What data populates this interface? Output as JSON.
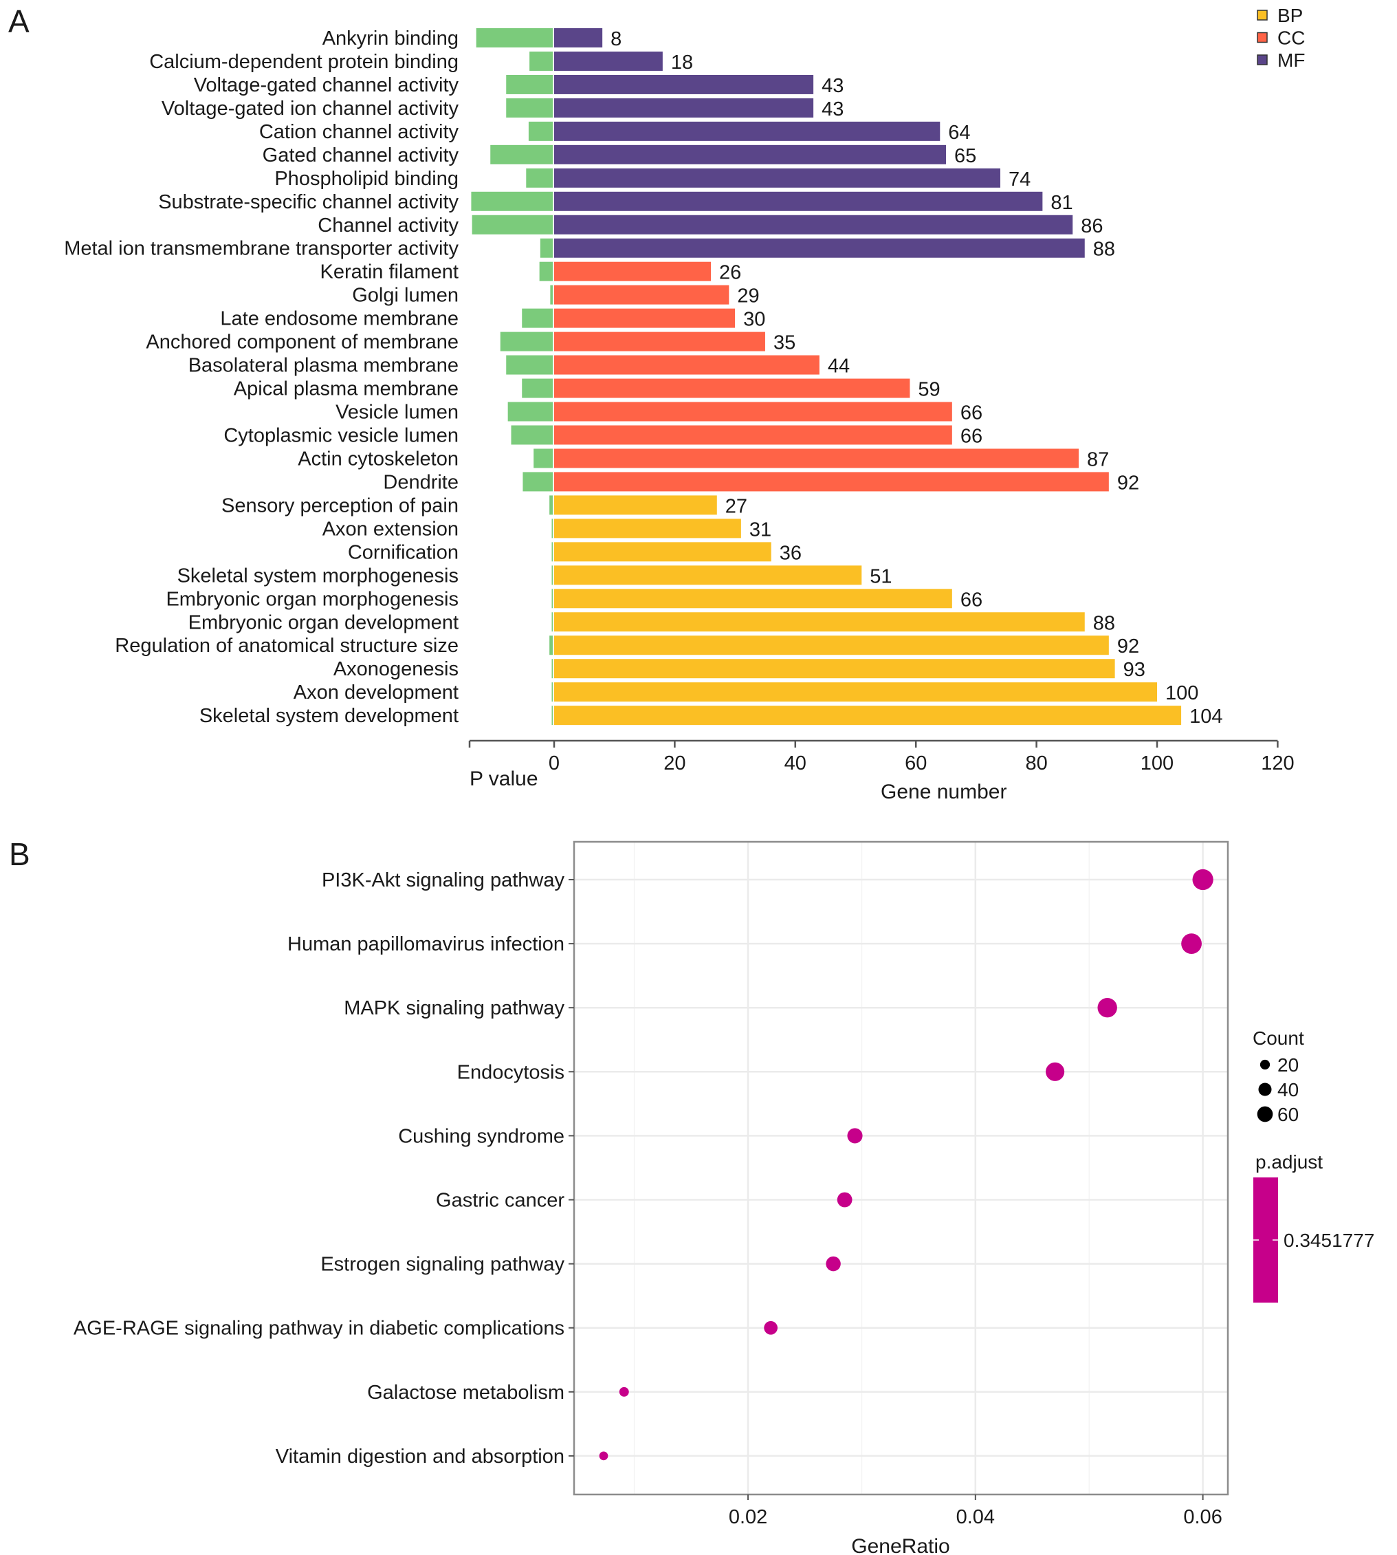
{
  "panel_a_letter": "A",
  "panel_b_letter": "B",
  "chart_data": [
    {
      "type": "bar",
      "panel": "A",
      "orientation": "horizontal",
      "title": "",
      "xlabel": "Gene number",
      "secondary_xlabel": "P value",
      "xlim": [
        0,
        120
      ],
      "xticks": [
        "0",
        "20",
        "40",
        "60",
        "80",
        "100",
        "120"
      ],
      "xtick_values": [
        0,
        20,
        40,
        60,
        80,
        100,
        120
      ],
      "p_value_note": "Green bars extend left of 0 on an unlabeled P value axis; values given as fraction of that axis extent",
      "legend": {
        "position": "top-right",
        "entries": [
          {
            "key": "BP",
            "label": "BP",
            "color": "#FBBF24"
          },
          {
            "key": "CC",
            "label": "CC",
            "color": "#FF6347"
          },
          {
            "key": "MF",
            "label": "MF",
            "color": "#5A4589"
          }
        ]
      },
      "pvalue_color": "#7BCB7B",
      "categories": [
        {
          "label": "Ankyrin binding",
          "group": "MF",
          "gene_number": 8,
          "p_value_bar": 0.92
        },
        {
          "label": "Calcium-dependent protein binding",
          "group": "MF",
          "gene_number": 18,
          "p_value_bar": 0.28
        },
        {
          "label": "Voltage-gated channel activity",
          "group": "MF",
          "gene_number": 43,
          "p_value_bar": 0.56
        },
        {
          "label": "Voltage-gated ion channel activity",
          "group": "MF",
          "gene_number": 43,
          "p_value_bar": 0.56
        },
        {
          "label": "Cation channel activity",
          "group": "MF",
          "gene_number": 64,
          "p_value_bar": 0.29
        },
        {
          "label": "Gated channel activity",
          "group": "MF",
          "gene_number": 65,
          "p_value_bar": 0.75
        },
        {
          "label": "Phospholipid binding",
          "group": "MF",
          "gene_number": 74,
          "p_value_bar": 0.32
        },
        {
          "label": "Substrate-specific channel activity",
          "group": "MF",
          "gene_number": 81,
          "p_value_bar": 0.98
        },
        {
          "label": "Channel activity",
          "group": "MF",
          "gene_number": 86,
          "p_value_bar": 0.97
        },
        {
          "label": "Metal ion transmembrane transporter activity",
          "group": "MF",
          "gene_number": 88,
          "p_value_bar": 0.15
        },
        {
          "label": "Keratin filament",
          "group": "CC",
          "gene_number": 26,
          "p_value_bar": 0.16
        },
        {
          "label": "Golgi lumen",
          "group": "CC",
          "gene_number": 29,
          "p_value_bar": 0.03
        },
        {
          "label": "Late endosome membrane",
          "group": "CC",
          "gene_number": 30,
          "p_value_bar": 0.37
        },
        {
          "label": "Anchored component of membrane",
          "group": "CC",
          "gene_number": 35,
          "p_value_bar": 0.63
        },
        {
          "label": "Basolateral plasma membrane",
          "group": "CC",
          "gene_number": 44,
          "p_value_bar": 0.56
        },
        {
          "label": "Apical plasma membrane",
          "group": "CC",
          "gene_number": 59,
          "p_value_bar": 0.37
        },
        {
          "label": "Vesicle lumen",
          "group": "CC",
          "gene_number": 66,
          "p_value_bar": 0.54
        },
        {
          "label": "Cytoplasmic vesicle lumen",
          "group": "CC",
          "gene_number": 66,
          "p_value_bar": 0.5
        },
        {
          "label": "Actin cytoskeleton",
          "group": "CC",
          "gene_number": 87,
          "p_value_bar": 0.23
        },
        {
          "label": "Dendrite",
          "group": "CC",
          "gene_number": 92,
          "p_value_bar": 0.36
        },
        {
          "label": "Sensory perception of pain",
          "group": "BP",
          "gene_number": 27,
          "p_value_bar": 0.04
        },
        {
          "label": "Axon extension",
          "group": "BP",
          "gene_number": 31,
          "p_value_bar": 0.01
        },
        {
          "label": "Cornification",
          "group": "BP",
          "gene_number": 36,
          "p_value_bar": 0.005
        },
        {
          "label": "Skeletal system morphogenesis",
          "group": "BP",
          "gene_number": 51,
          "p_value_bar": 0.01
        },
        {
          "label": "Embryonic organ morphogenesis",
          "group": "BP",
          "gene_number": 66,
          "p_value_bar": 0.005
        },
        {
          "label": "Embryonic organ development",
          "group": "BP",
          "gene_number": 88,
          "p_value_bar": 0.01
        },
        {
          "label": "Regulation of anatomical structure size",
          "group": "BP",
          "gene_number": 92,
          "p_value_bar": 0.04
        },
        {
          "label": "Axonogenesis",
          "group": "BP",
          "gene_number": 93,
          "p_value_bar": 0.005
        },
        {
          "label": "Axon development",
          "group": "BP",
          "gene_number": 100,
          "p_value_bar": 0.005
        },
        {
          "label": "Skeletal system development",
          "group": "BP",
          "gene_number": 104,
          "p_value_bar": 0.005
        }
      ]
    },
    {
      "type": "scatter",
      "panel": "B",
      "title": "",
      "xlabel": "GeneRatio",
      "ylabel": "",
      "xlim": [
        0.0047,
        0.0622
      ],
      "xticks": [
        "0.02",
        "0.04",
        "0.06"
      ],
      "xtick_values": [
        0.02,
        0.04,
        0.06
      ],
      "minor_grid_values": [
        0.01,
        0.03,
        0.05
      ],
      "grid": true,
      "point_color": "#C6008A",
      "points": [
        {
          "label": "PI3K-Akt signaling pathway",
          "gene_ratio": 0.06,
          "count": 60
        },
        {
          "label": "Human papillomavirus infection",
          "gene_ratio": 0.059,
          "count": 58
        },
        {
          "label": "MAPK signaling pathway",
          "gene_ratio": 0.0516,
          "count": 52
        },
        {
          "label": "Endocytosis",
          "gene_ratio": 0.047,
          "count": 47
        },
        {
          "label": "Cushing syndrome",
          "gene_ratio": 0.0294,
          "count": 29
        },
        {
          "label": "Gastric cancer",
          "gene_ratio": 0.0285,
          "count": 28
        },
        {
          "label": "Estrogen signaling pathway",
          "gene_ratio": 0.0275,
          "count": 27
        },
        {
          "label": "AGE-RAGE signaling pathway in diabetic complications",
          "gene_ratio": 0.022,
          "count": 22
        },
        {
          "label": "Galactose metabolism",
          "gene_ratio": 0.0091,
          "count": 9
        },
        {
          "label": "Vitamin digestion and absorption",
          "gene_ratio": 0.0073,
          "count": 7
        }
      ],
      "size_legend": {
        "title": "Count",
        "entries": [
          {
            "label": "20",
            "value": 20
          },
          {
            "label": "40",
            "value": 40
          },
          {
            "label": "60",
            "value": 60
          }
        ]
      },
      "color_legend": {
        "title": "p.adjust",
        "label": "0.3451777",
        "value": 0.3451777,
        "color": "#C6008A"
      }
    }
  ]
}
